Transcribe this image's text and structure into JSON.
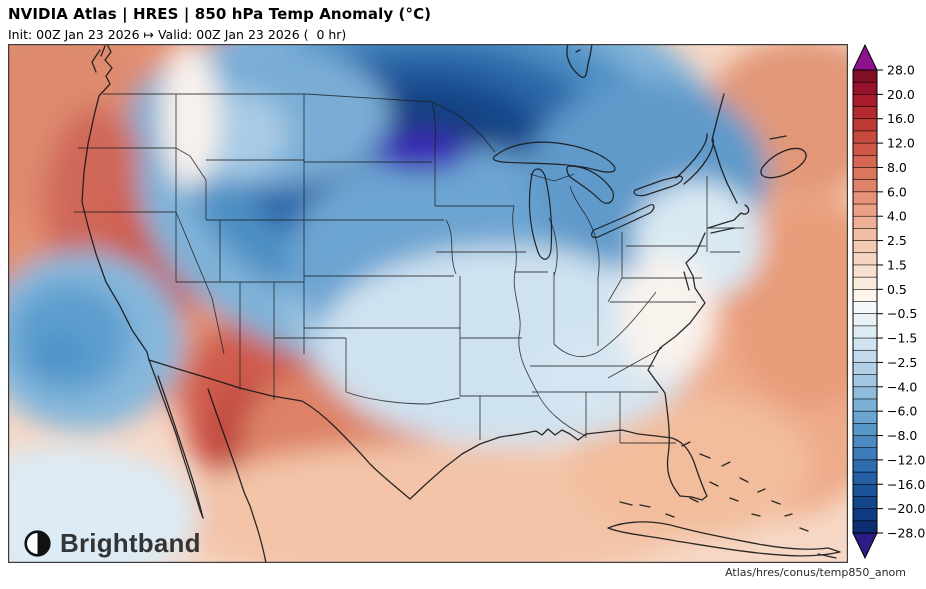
{
  "header": {
    "title": "NVIDIA Atlas | HRES | 850 hPa Temp Anomaly (°C)",
    "subtitle": "Init: 00Z Jan 23 2026 ↦ Valid: 00Z Jan 23 2026 (  0 hr)"
  },
  "branding": {
    "logo_text": "Brightband",
    "logo_icon": "half-filled-circle-icon"
  },
  "footer": {
    "caption": "Atlas/hres/conus/temp850_anom"
  },
  "colorbar": {
    "units": "°C",
    "orientation": "vertical",
    "tick_labels": [
      "28.0",
      "20.0",
      "16.0",
      "12.0",
      "8.0",
      "6.0",
      "4.0",
      "2.5",
      "1.5",
      "0.5",
      "−0.5",
      "−1.5",
      "−2.5",
      "−4.0",
      "−6.0",
      "−8.0",
      "−12.0",
      "−16.0",
      "−20.0",
      "−28.0"
    ],
    "labeled_boundaries": [
      28,
      20,
      16,
      12,
      8,
      6,
      4,
      2.5,
      1.5,
      0.5,
      -0.5,
      -1.5,
      -2.5,
      -4,
      -6,
      -8,
      -12,
      -16,
      -20,
      -28
    ],
    "boundaries": [
      28,
      24,
      20,
      18,
      16,
      14,
      12,
      10,
      8,
      7,
      6,
      5,
      4,
      3,
      2.5,
      2,
      1.5,
      1,
      0.5,
      0,
      -0.5,
      -1,
      -1.5,
      -2,
      -2.5,
      -3,
      -4,
      -5,
      -6,
      -7,
      -8,
      -10,
      -12,
      -14,
      -16,
      -18,
      -20,
      -24,
      -28
    ],
    "segment_colors": [
      "#800f26",
      "#96122a",
      "#a81c2c",
      "#b32b2f",
      "#bd3a36",
      "#c74a3e",
      "#cf5848",
      "#d66752",
      "#db755e",
      "#e0836b",
      "#e59278",
      "#eaa187",
      "#eeb095",
      "#f1bea4",
      "#f4cab3",
      "#f6d5c2",
      "#f9e1d2",
      "#fbeade",
      "#fdf4ec",
      "#f5f9fb",
      "#eaf2f8",
      "#ddebf4",
      "#d0e3f0",
      "#c2daec",
      "#b2d1e7",
      "#a1c7e2",
      "#8fbcdc",
      "#7cb0d6",
      "#6aa4d0",
      "#5997c9",
      "#4a8ac1",
      "#3c7cb8",
      "#2f6dae",
      "#2560a4",
      "#1c5399",
      "#14468d",
      "#0d3a80",
      "#0b2f72"
    ],
    "over_arrow_color": "#8e118e",
    "under_arrow_color": "#2a1d86",
    "outline_color": "#000000"
  },
  "chart_data": {
    "type": "heatmap",
    "title": "NVIDIA Atlas | HRES | 850 hPa Temp Anomaly (°C)",
    "variable": "850 hPa temperature anomaly",
    "units": "°C",
    "region": "CONUS",
    "init_time": "00Z Jan 23 2026",
    "valid_time": "00Z Jan 23 2026",
    "forecast_hour": 0,
    "colorbar_range": [
      -28,
      28
    ],
    "legend_position": "right",
    "features": [
      {
        "label": "extreme cold core",
        "location": "Minnesota / eastern South Dakota",
        "approx_value_c": -24
      },
      {
        "label": "broad cold anomaly",
        "location": "Northern Plains, Upper Midwest, Great Lakes, Ohio Valley, Northeast",
        "approx_value_c": -12
      },
      {
        "label": "cold tongue",
        "location": "central Plains into Mid-South",
        "approx_value_c": -4
      },
      {
        "label": "warm anomaly",
        "location": "Great Basin, Desert Southwest, California interior",
        "approx_value_c": 8
      },
      {
        "label": "warm maximum",
        "location": "West Texas / southern New Mexico / northern Mexico",
        "approx_value_c": 10
      },
      {
        "label": "cool pool",
        "location": "Pacific Ocean off southern California",
        "approx_value_c": -4
      },
      {
        "label": "mild warm anomaly",
        "location": "Southeast US, Gulf of Mexico, western Atlantic, Canadian Maritimes",
        "approx_value_c": 4
      }
    ]
  }
}
